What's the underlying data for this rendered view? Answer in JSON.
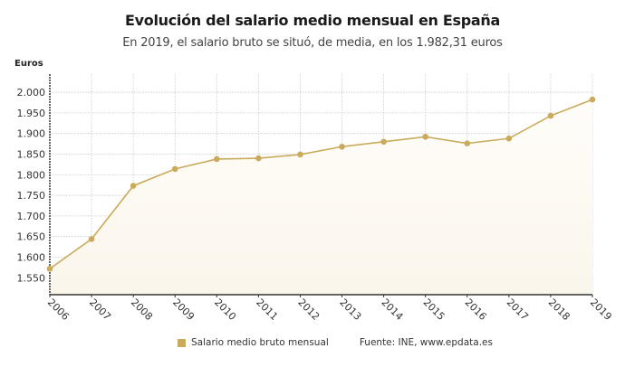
{
  "chart_data": {
    "type": "area",
    "title": "Evolución del salario medio mensual en España",
    "subtitle": "En 2019, el salario bruto se situó, de media, en los 1.982,31 euros",
    "ylabel": "Euros",
    "xlabel": "",
    "categories": [
      "2006",
      "2007",
      "2008",
      "2009",
      "2010",
      "2011",
      "2012",
      "2013",
      "2014",
      "2015",
      "2016",
      "2017",
      "2018",
      "2019"
    ],
    "series": [
      {
        "name": "Salario medio bruto mensual",
        "values": [
          1572,
          1644,
          1773,
          1814,
          1838,
          1840,
          1849,
          1868,
          1880,
          1892,
          1876,
          1888,
          1943,
          1982.31
        ]
      }
    ],
    "yticks": [
      1550,
      1600,
      1650,
      1700,
      1750,
      1800,
      1850,
      1900,
      1950,
      2000
    ],
    "ytick_labels": [
      "1.550",
      "1.600",
      "1.650",
      "1.700",
      "1.750",
      "1.800",
      "1.850",
      "1.900",
      "1.950",
      "2.000"
    ],
    "ylim": [
      1509,
      2044
    ],
    "grid": true,
    "legend": "bottom",
    "source": "Fuente: INE, www.epdata.es",
    "colors": {
      "line": "#c9ab5b",
      "fill": "#fbf6ec",
      "grid": "#c8c8c8",
      "axis": "#333333"
    }
  }
}
